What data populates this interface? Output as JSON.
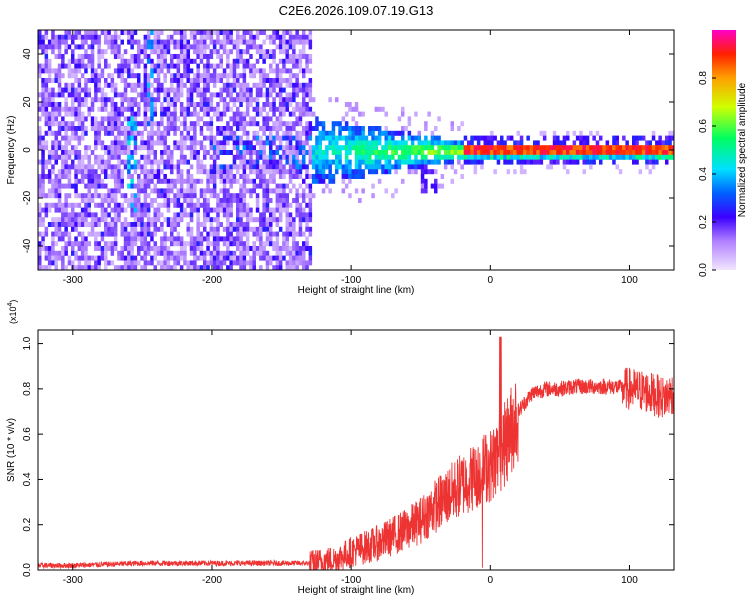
{
  "title": "C2E6.2026.109.07.19.G13",
  "chart_data": [
    {
      "type": "heatmap",
      "xlabel": "Height of straight line (km)",
      "ylabel": "Frequency (Hz)",
      "xlim": [
        -325,
        132
      ],
      "ylim": [
        -50,
        50
      ],
      "x_ticks": [
        -300,
        -200,
        -100,
        0,
        100
      ],
      "y_ticks": [
        -40,
        -20,
        0,
        20,
        40
      ],
      "colorbar": {
        "label": "Normalized spectral amplitude",
        "range": [
          0.0,
          1.0
        ],
        "ticks": [
          0.0,
          0.2,
          0.4,
          0.6,
          0.8
        ]
      },
      "structure": {
        "noise_region_x": [
          -325,
          -130
        ],
        "noise_amplitude_typical": 0.15,
        "transition_region_x": [
          -130,
          -20
        ],
        "signal_band_center_hz": [
          0,
          2
        ],
        "signal_band_peak_amplitude": 0.95,
        "signal_band_x": [
          -20,
          132
        ]
      }
    },
    {
      "type": "line",
      "xlabel": "Height of straight line (km)",
      "ylabel": "SNR (10 * v/v)",
      "y_scale_note": "(x10^4)",
      "xlim": [
        -325,
        132
      ],
      "ylim": [
        0.0,
        1.06
      ],
      "x_ticks": [
        -300,
        -200,
        -100,
        0,
        100
      ],
      "y_ticks": [
        0.0,
        0.2,
        0.4,
        0.6,
        0.8,
        1.0
      ],
      "color": "#ee3333",
      "series": [
        {
          "x": [
            -325,
            -300,
            -250,
            -200,
            -160,
            -130,
            -110,
            -100,
            -90,
            -80,
            -70,
            -60,
            -50,
            -40,
            -30,
            -20,
            -10,
            -5,
            0,
            5,
            10,
            15,
            20,
            30,
            40,
            50,
            60,
            70,
            80,
            90,
            100,
            110,
            120,
            125,
            130
          ],
          "y": [
            0.02,
            0.02,
            0.03,
            0.03,
            0.03,
            0.03,
            0.05,
            0.08,
            0.1,
            0.12,
            0.15,
            0.18,
            0.22,
            0.28,
            0.33,
            0.38,
            0.42,
            0.45,
            0.46,
            0.5,
            0.55,
            0.62,
            0.7,
            0.78,
            0.8,
            0.8,
            0.81,
            0.81,
            0.81,
            0.81,
            0.8,
            0.79,
            0.77,
            0.76,
            0.78
          ]
        }
      ]
    }
  ]
}
